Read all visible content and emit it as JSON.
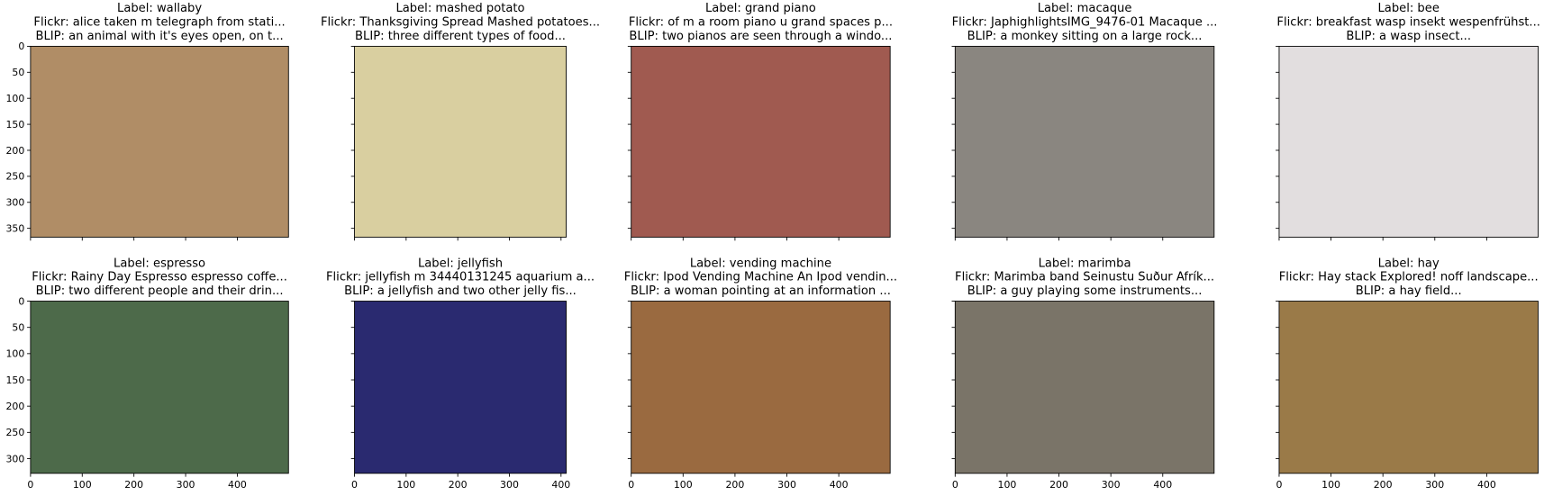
{
  "rows": [
    {
      "ylim": [
        367,
        0
      ],
      "yticks": [
        0,
        50,
        100,
        150,
        200,
        250,
        300,
        350
      ]
    },
    {
      "ylim": [
        328,
        0
      ],
      "yticks": [
        0,
        50,
        100,
        150,
        200,
        250,
        300
      ]
    }
  ],
  "columns": [
    {
      "xlim": [
        0,
        499
      ],
      "xticks": [
        0,
        100,
        200,
        300,
        400
      ]
    },
    {
      "xlim": [
        0,
        410
      ],
      "xticks": [
        0,
        100,
        200,
        300,
        400
      ]
    },
    {
      "xlim": [
        0,
        499
      ],
      "xticks": [
        0,
        100,
        200,
        300,
        400
      ]
    },
    {
      "xlim": [
        0,
        499
      ],
      "xticks": [
        0,
        100,
        200,
        300,
        400
      ]
    },
    {
      "xlim": [
        0,
        499
      ],
      "xticks": [
        0,
        100,
        200,
        300,
        400
      ]
    }
  ],
  "panels": [
    {
      "label": "Label: wallaby",
      "flickr": "Flickr:  alice taken m telegraph from stati...",
      "blip": "BLIP: an animal with it's eyes open, on t...",
      "color": "#b08d66"
    },
    {
      "label": "Label: mashed potato",
      "flickr": "Flickr: Thanksgiving Spread Mashed potatoes...",
      "blip": "BLIP: three different types of food...",
      "color": "#d9cfa0"
    },
    {
      "label": "Label: grand piano",
      "flickr": "Flickr:  of m a room piano u grand spaces p...",
      "blip": "BLIP: two pianos are seen through a windo...",
      "color": "#a05a50"
    },
    {
      "label": "Label: macaque",
      "flickr": "Flickr: JaphighlightsIMG_9476-01   Macaque ...",
      "blip": "BLIP: a monkey sitting on a large rock...",
      "color": "#8a8680"
    },
    {
      "label": "Label: bee",
      "flickr": "Flickr:  breakfast wasp insekt wespenfrühst...",
      "blip": "BLIP: a wasp insect...",
      "color": "#e2dedf"
    },
    {
      "label": "Label: espresso",
      "flickr": "Flickr: Rainy Day Espresso   espresso coffe...",
      "blip": "BLIP: two different people and their drin...",
      "color": "#4d6a4a"
    },
    {
      "label": "Label: jellyfish",
      "flickr": "Flickr:  jellyfish m 34440131245 aquarium a...",
      "blip": "BLIP: a jellyfish and two other jelly fis...",
      "color": "#2a2a70"
    },
    {
      "label": "Label: vending machine",
      "flickr": "Flickr: Ipod Vending Machine An Ipod vendin...",
      "blip": "BLIP: a woman pointing at an information ...",
      "color": "#9a6a40"
    },
    {
      "label": "Label: marimba",
      "flickr": "Flickr: Marimba band   Seinustu Suður Afrík...",
      "blip": "BLIP: a guy playing some instruments...",
      "color": "#7a7468"
    },
    {
      "label": "Label: hay",
      "flickr": "Flickr: Hay stack Explored!  noff landscape...",
      "blip": "BLIP: a hay field...",
      "color": "#9a7a48"
    }
  ]
}
